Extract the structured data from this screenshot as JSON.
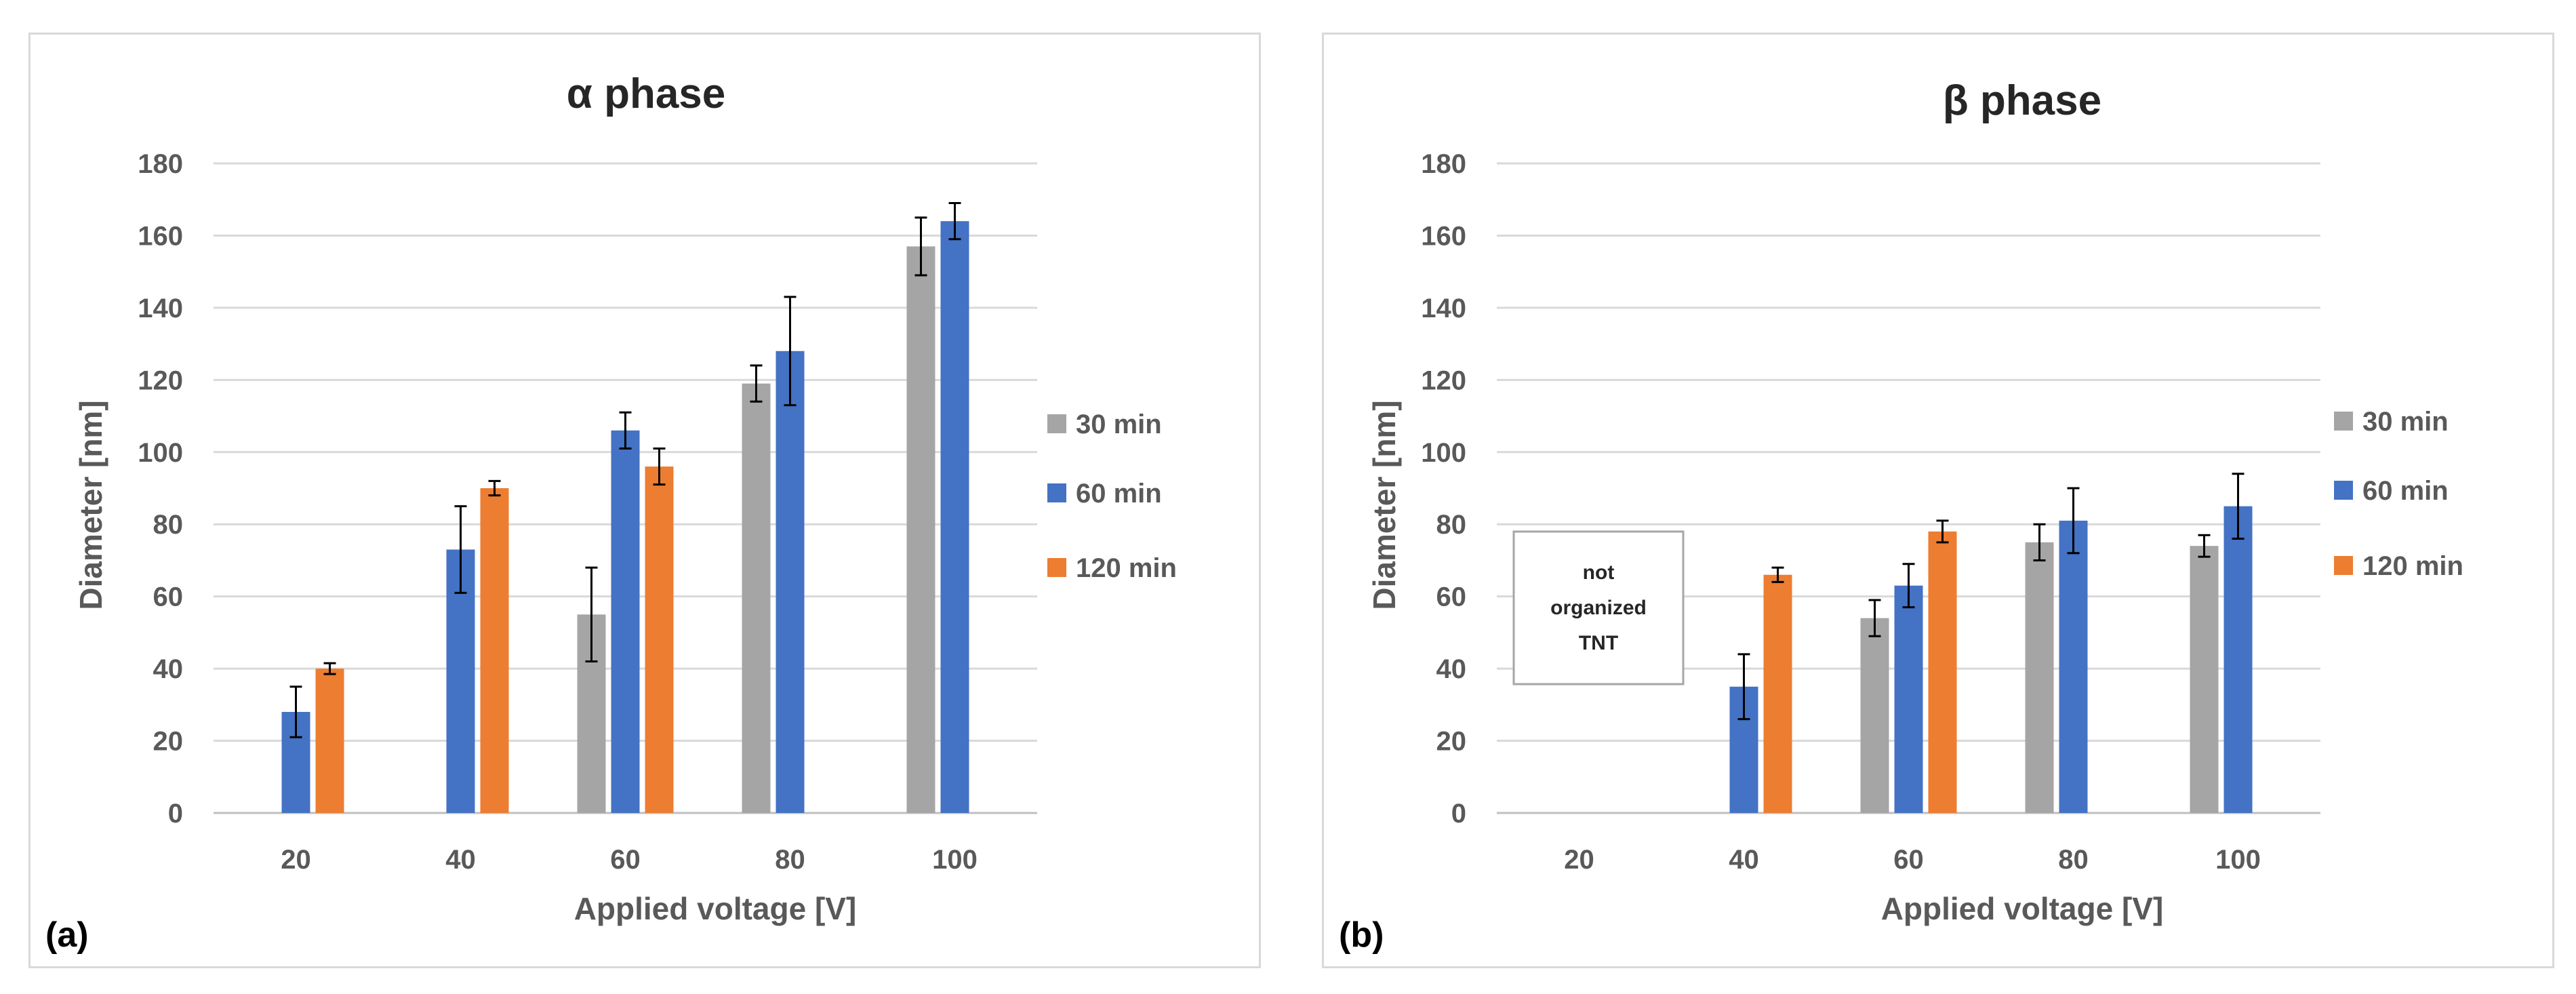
{
  "chart_data": [
    {
      "type": "bar",
      "panel_label": "(a)",
      "title": "α phase",
      "xlabel": "Applied voltage [V]",
      "ylabel": "Diameter [nm]",
      "ylim": [
        0,
        180
      ],
      "yticks": [
        0,
        20,
        40,
        60,
        80,
        100,
        120,
        140,
        160,
        180
      ],
      "grid": true,
      "legend_position": "right",
      "categories": [
        "20",
        "40",
        "60",
        "80",
        "100"
      ],
      "series": [
        {
          "name": "30 min",
          "color": "#a5a5a5",
          "values": [
            null,
            null,
            55,
            119,
            157
          ],
          "errors": [
            null,
            null,
            13,
            5,
            8
          ]
        },
        {
          "name": "60 min",
          "color": "#4472c4",
          "values": [
            28,
            73,
            106,
            128,
            164
          ],
          "errors": [
            7,
            12,
            5,
            15,
            5
          ]
        },
        {
          "name": "120 min",
          "color": "#ed7d31",
          "values": [
            40,
            90,
            96,
            null,
            null
          ],
          "errors": [
            1.5,
            2,
            5,
            null,
            null
          ]
        }
      ]
    },
    {
      "type": "bar",
      "panel_label": "(b)",
      "title": "β phase",
      "xlabel": "Applied voltage [V]",
      "ylabel": "Diameter [nm]",
      "ylim": [
        0,
        180
      ],
      "yticks": [
        0,
        20,
        40,
        60,
        80,
        100,
        120,
        140,
        160,
        180
      ],
      "grid": true,
      "legend_position": "right",
      "annotation": [
        "not",
        "organized",
        "TNT"
      ],
      "categories": [
        "20",
        "40",
        "60",
        "80",
        "100"
      ],
      "series": [
        {
          "name": "30 min",
          "color": "#a5a5a5",
          "values": [
            null,
            null,
            54,
            75,
            74
          ],
          "errors": [
            null,
            null,
            5,
            5,
            3
          ]
        },
        {
          "name": "60 min",
          "color": "#4472c4",
          "values": [
            null,
            35,
            63,
            81,
            85
          ],
          "errors": [
            null,
            9,
            6,
            9,
            9
          ]
        },
        {
          "name": "120 min",
          "color": "#ed7d31",
          "values": [
            null,
            66,
            78,
            null,
            null
          ],
          "errors": [
            null,
            2,
            3,
            null,
            null
          ]
        }
      ]
    }
  ]
}
